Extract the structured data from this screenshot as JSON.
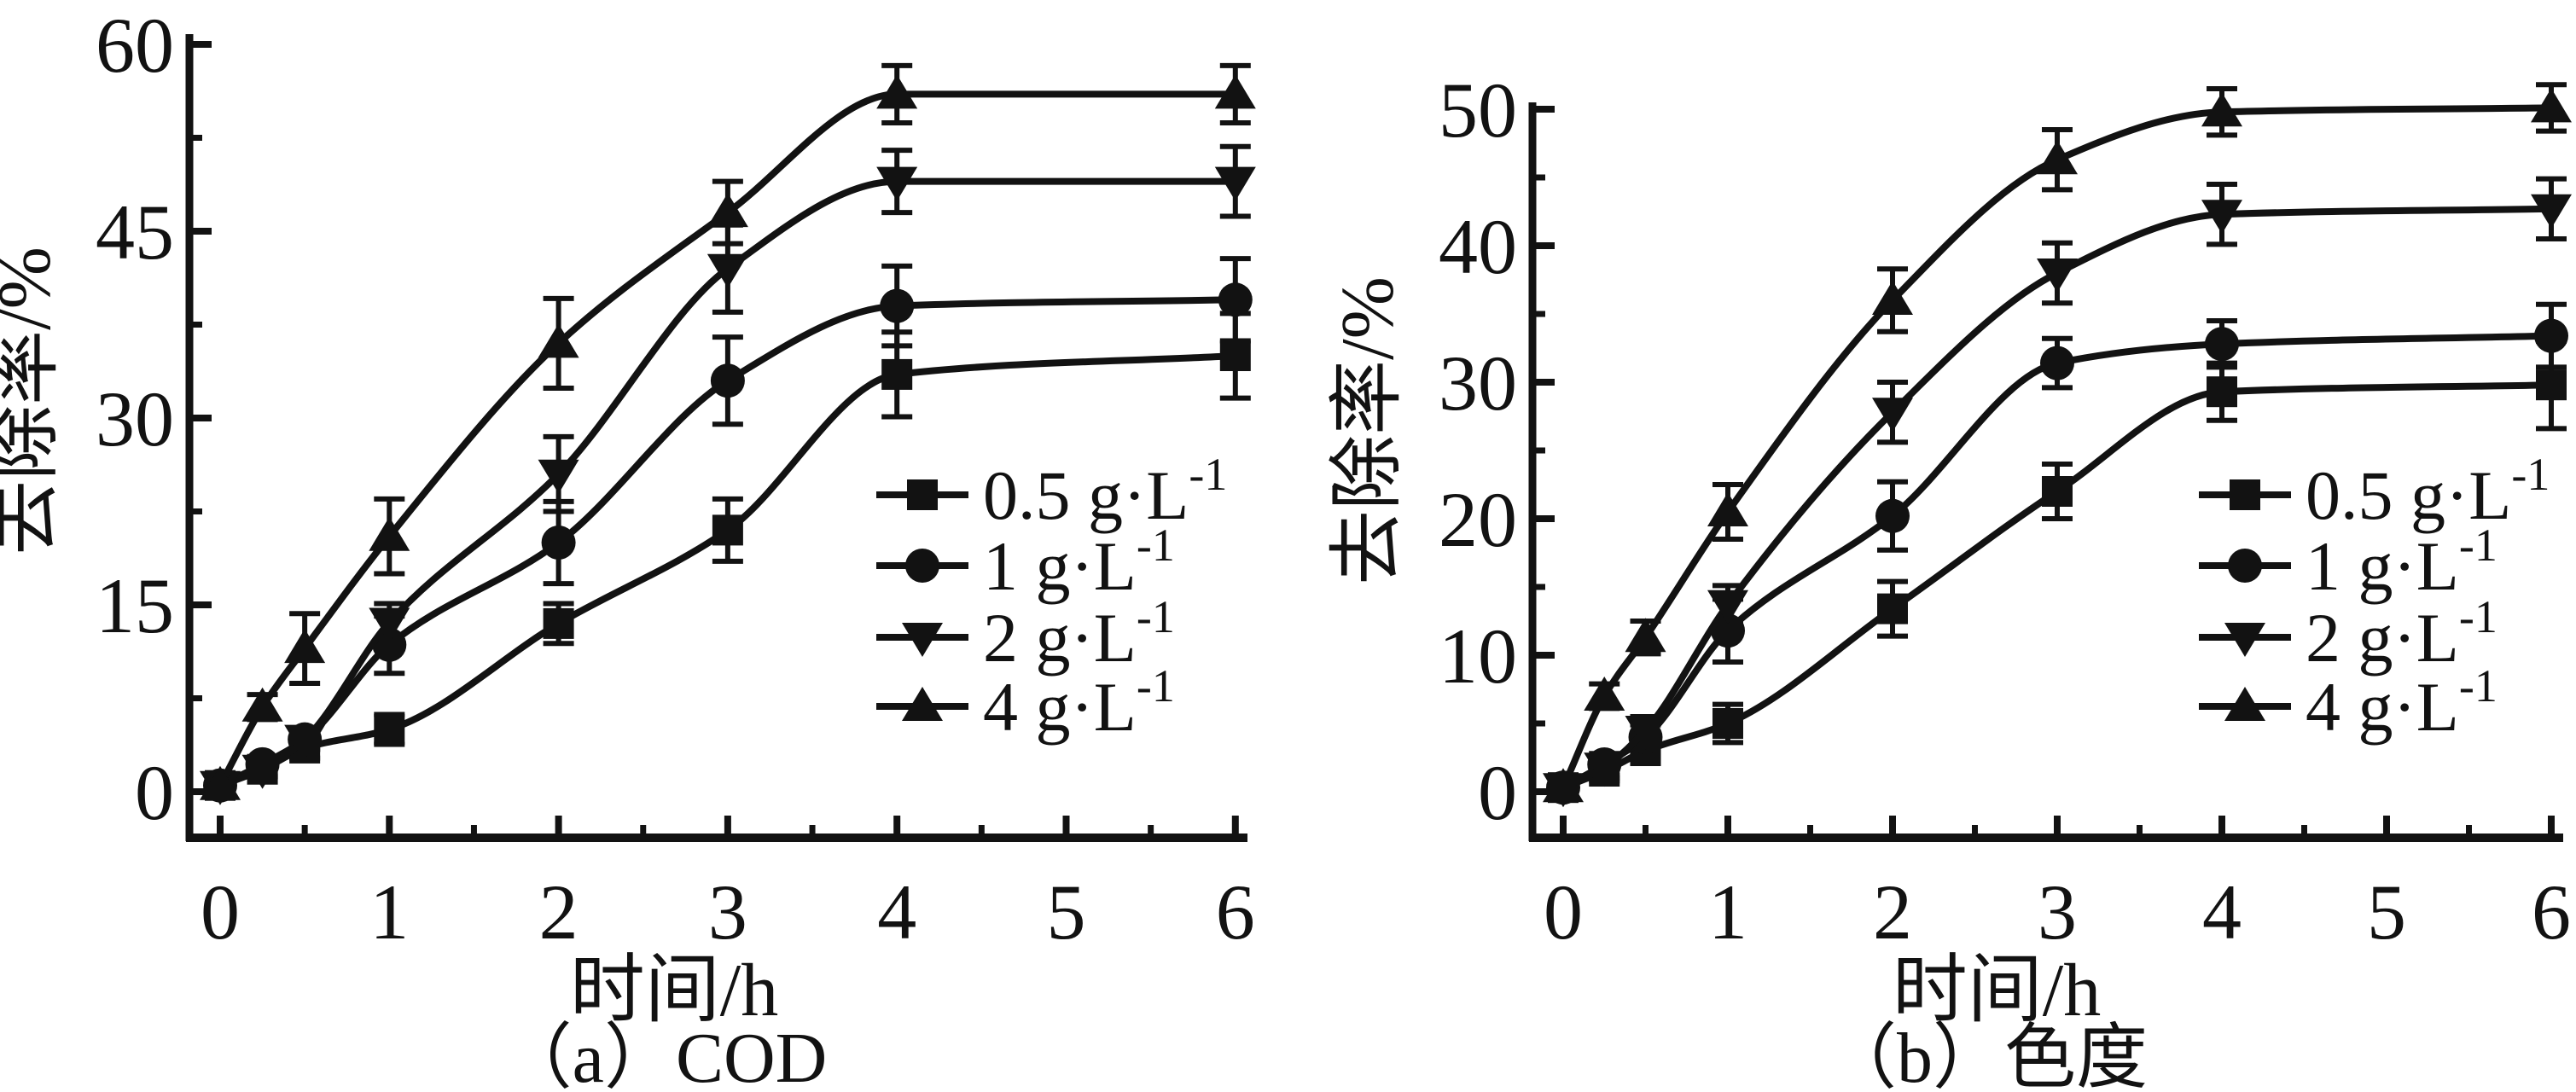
{
  "figure": {
    "background": "#ffffff",
    "ink": "#121212"
  },
  "chart_data": [
    {
      "type": "line",
      "panel": "a",
      "caption": "（a）COD",
      "xlabel": "时间/h",
      "ylabel": "去除率/%",
      "xlim": [
        0,
        6
      ],
      "ylim": [
        0,
        60
      ],
      "x_major_ticks": [
        0,
        1,
        2,
        3,
        4,
        5,
        6
      ],
      "x_minor_ticks": [
        0.5,
        1.5,
        2.5,
        3.5,
        4.5,
        5.5
      ],
      "y_major_ticks": [
        0,
        15,
        30,
        45,
        60
      ],
      "y_minor_ticks": [
        7.5,
        22.5,
        37.5,
        52.5
      ],
      "grid": false,
      "legend_position": "inside-lower-right",
      "x": [
        0,
        0.25,
        0.5,
        1,
        2,
        3,
        4,
        6
      ],
      "series": [
        {
          "name": "0.5 g·L⁻¹",
          "legend_base": "0.5 g·L",
          "legend_sup": "-1",
          "marker": "square",
          "values": [
            0.5,
            1.8,
            3.5,
            5,
            13.5,
            21,
            33.5,
            35
          ],
          "errors": [
            0.7,
            0.6,
            0.8,
            1.2,
            1.6,
            2.5,
            3.4,
            3.4
          ]
        },
        {
          "name": "1 g·L⁻¹",
          "legend_base": "1 g·L",
          "legend_sup": "-1",
          "marker": "circle",
          "values": [
            0.5,
            2.2,
            4.2,
            11.8,
            20,
            33,
            39,
            39.5
          ],
          "errors": [
            0.7,
            0.6,
            0.8,
            2.3,
            3.3,
            3.5,
            3.2,
            3.3
          ]
        },
        {
          "name": "2 g·L⁻¹",
          "legend_base": "2 g·L",
          "legend_sup": "-1",
          "marker": "triangle-down",
          "values": [
            0.5,
            1.8,
            4.2,
            13.6,
            25.5,
            42,
            49,
            49
          ],
          "errors": [
            0.7,
            0.6,
            0.8,
            1.5,
            3.0,
            3.5,
            2.5,
            2.8
          ]
        },
        {
          "name": "4 g·L⁻¹",
          "legend_base": "4 g·L",
          "legend_sup": "-1",
          "marker": "triangle-up",
          "values": [
            0.5,
            6.8,
            11.5,
            20.5,
            36,
            46.5,
            56,
            56
          ],
          "errors": [
            0.7,
            1.0,
            2.8,
            3.0,
            3.6,
            2.5,
            2.3,
            2.3
          ]
        }
      ]
    },
    {
      "type": "line",
      "panel": "b",
      "caption": "（b）色度",
      "xlabel": "时间/h",
      "ylabel": "去除率/%",
      "xlim": [
        0,
        6
      ],
      "ylim": [
        0,
        50
      ],
      "x_major_ticks": [
        0,
        1,
        2,
        3,
        4,
        5,
        6
      ],
      "x_minor_ticks": [
        0.5,
        1.5,
        2.5,
        3.5,
        4.5,
        5.5
      ],
      "y_major_ticks": [
        0,
        10,
        20,
        30,
        40,
        50
      ],
      "y_minor_ticks": [
        5,
        15,
        25,
        35,
        45
      ],
      "grid": false,
      "legend_position": "inside-lower-right",
      "x": [
        0,
        0.25,
        0.5,
        1,
        2,
        3,
        4,
        6
      ],
      "series": [
        {
          "name": "0.5 g·L⁻¹",
          "legend_base": "0.5 g·L",
          "legend_sup": "-1",
          "marker": "square",
          "values": [
            0.3,
            1.5,
            3,
            5,
            13.4,
            22,
            29.3,
            29.8
          ],
          "errors": [
            0.7,
            0.7,
            0.9,
            1.4,
            2.0,
            2.0,
            2.1,
            3.2
          ]
        },
        {
          "name": "1 g·L⁻¹",
          "legend_base": "1 g·L",
          "legend_sup": "-1",
          "marker": "circle",
          "values": [
            0.3,
            2,
            4,
            11.8,
            20.2,
            31.4,
            32.8,
            33.4
          ],
          "errors": [
            0.7,
            0.8,
            0.9,
            2.3,
            2.5,
            1.8,
            1.7,
            2.3
          ]
        },
        {
          "name": "2 g·L⁻¹",
          "legend_base": "2 g·L",
          "legend_sup": "-1",
          "marker": "triangle-down",
          "values": [
            0.3,
            1.8,
            4.5,
            13.7,
            27.8,
            38,
            42.3,
            42.7
          ],
          "errors": [
            0.7,
            0.8,
            1.0,
            1.4,
            2.2,
            2.2,
            2.2,
            2.2
          ]
        },
        {
          "name": "4 g·L⁻¹",
          "legend_base": "4 g·L",
          "legend_sup": "-1",
          "marker": "triangle-up",
          "values": [
            0.3,
            7,
            11.3,
            20.5,
            36,
            46.3,
            49.8,
            50.1
          ],
          "errors": [
            0.7,
            0.9,
            1.2,
            2.0,
            2.3,
            2.2,
            1.7,
            1.7
          ]
        }
      ]
    }
  ]
}
